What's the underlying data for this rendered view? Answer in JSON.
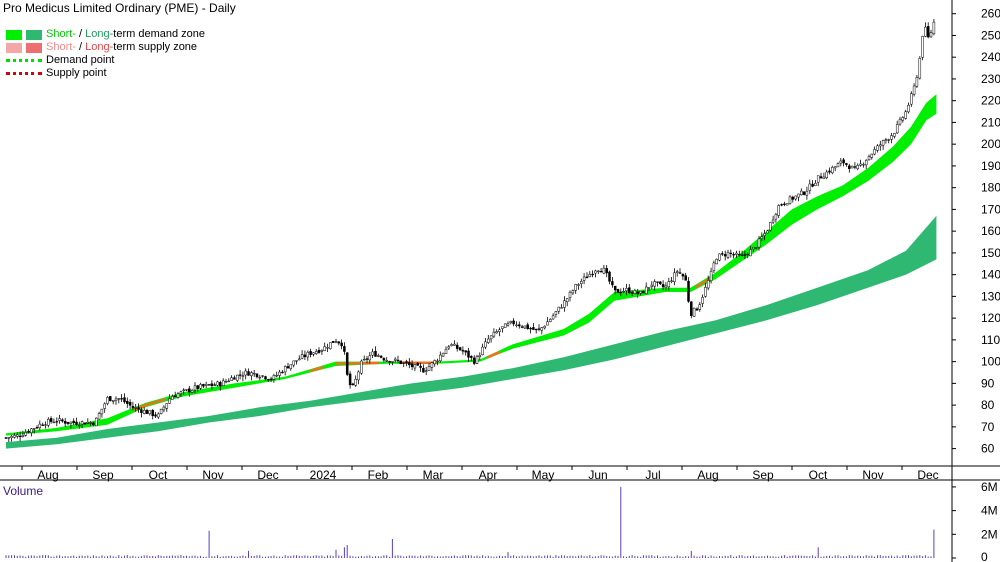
{
  "title": "Pro Medicus Limited Ordinary (PME) - Daily",
  "legend": {
    "demand_zone": {
      "short": "Short-",
      "sep": " / ",
      "long": "Long-",
      "rest": "term demand zone",
      "short_color": "#00ee00",
      "long_color": "#2eb872"
    },
    "supply_zone": {
      "short": "Short-",
      "sep": " / ",
      "long": "Long-",
      "rest": "term supply zone",
      "short_color": "#f4a7a7",
      "long_color": "#ec7070"
    },
    "demand_point": {
      "label": "Demand point",
      "color": "#00dd00"
    },
    "supply_point": {
      "label": "Supply point",
      "color": "#dd0000"
    }
  },
  "volume_title": "Volume",
  "chart_data": [
    {
      "type": "candlestick",
      "title": "Pro Medicus Limited Ordinary (PME) - Daily",
      "x_labels": [
        "Aug",
        "Sep",
        "Oct",
        "Nov",
        "Dec",
        "2024",
        "Feb",
        "Mar",
        "Apr",
        "May",
        "Jun",
        "Jul",
        "Aug",
        "Sep",
        "Oct",
        "Nov",
        "Dec"
      ],
      "y_ticks": [
        60,
        70,
        80,
        90,
        100,
        110,
        120,
        130,
        140,
        150,
        160,
        170,
        180,
        190,
        200,
        210,
        220,
        230,
        240,
        250,
        260
      ],
      "ylim": [
        52,
        264
      ],
      "grid": false,
      "legend_position": "top-left",
      "price_path": [
        [
          0,
          65
        ],
        [
          0.5,
          66
        ],
        [
          1,
          69
        ],
        [
          1.5,
          72
        ],
        [
          2,
          73
        ],
        [
          2.5,
          72
        ],
        [
          3,
          72
        ],
        [
          3.5,
          72
        ],
        [
          4,
          83
        ],
        [
          4.5,
          83
        ],
        [
          5,
          79
        ],
        [
          5.5,
          77
        ],
        [
          6,
          75
        ],
        [
          6.5,
          84
        ],
        [
          7,
          86
        ],
        [
          7.5,
          88
        ],
        [
          8,
          89
        ],
        [
          8.5,
          90
        ],
        [
          9,
          93
        ],
        [
          9.5,
          95
        ],
        [
          10,
          94
        ],
        [
          10.5,
          92
        ],
        [
          11,
          97
        ],
        [
          11.5,
          101
        ],
        [
          12,
          104
        ],
        [
          12.5,
          106
        ],
        [
          13,
          110
        ],
        [
          13.3,
          108
        ],
        [
          13.5,
          90
        ],
        [
          13.7,
          88
        ],
        [
          14,
          99
        ],
        [
          14.5,
          104
        ],
        [
          15,
          101
        ],
        [
          15.5,
          100
        ],
        [
          16,
          98
        ],
        [
          16.5,
          96
        ],
        [
          17,
          101
        ],
        [
          17.5,
          108
        ],
        [
          18,
          105
        ],
        [
          18.5,
          100
        ],
        [
          19,
          110
        ],
        [
          19.5,
          115
        ],
        [
          20,
          118
        ],
        [
          20.5,
          116
        ],
        [
          21,
          114
        ],
        [
          21.5,
          120
        ],
        [
          22,
          127
        ],
        [
          22.5,
          135
        ],
        [
          23,
          140
        ],
        [
          23.3,
          143
        ],
        [
          23.6,
          142
        ],
        [
          24,
          132
        ],
        [
          24.5,
          133
        ],
        [
          25,
          131
        ],
        [
          25.5,
          136
        ],
        [
          26,
          134
        ],
        [
          26.5,
          142
        ],
        [
          26.8,
          138
        ],
        [
          27,
          122
        ],
        [
          27.3,
          125
        ],
        [
          27.8,
          140
        ],
        [
          28,
          148
        ],
        [
          28.5,
          150
        ],
        [
          29,
          148
        ],
        [
          29.5,
          152
        ],
        [
          30,
          160
        ],
        [
          30.5,
          172
        ],
        [
          31,
          175
        ],
        [
          31.5,
          178
        ],
        [
          32,
          184
        ],
        [
          32.5,
          188
        ],
        [
          33,
          192
        ],
        [
          33.5,
          188
        ],
        [
          34,
          194
        ],
        [
          34.5,
          200
        ],
        [
          35,
          205
        ],
        [
          35.5,
          215
        ],
        [
          35.8,
          225
        ],
        [
          36,
          235
        ],
        [
          36.2,
          255
        ],
        [
          36.4,
          248
        ],
        [
          36.6,
          256
        ]
      ],
      "short_term_demand_zone": [
        [
          0,
          66,
          67
        ],
        [
          2,
          68,
          69.5
        ],
        [
          4,
          71,
          74
        ],
        [
          5.5,
          79,
          81
        ],
        [
          7,
          84,
          86
        ],
        [
          9,
          88,
          90
        ],
        [
          11,
          92,
          93
        ],
        [
          13,
          98,
          100
        ],
        [
          15,
          99,
          100
        ],
        [
          17,
          99,
          100
        ],
        [
          18.7,
          100,
          101
        ],
        [
          20,
          106,
          108
        ],
        [
          22,
          112,
          115
        ],
        [
          23,
          118,
          122
        ],
        [
          24,
          128,
          132
        ],
        [
          25,
          130,
          133
        ],
        [
          26,
          132,
          134
        ],
        [
          27,
          132,
          134
        ],
        [
          28,
          138,
          141
        ],
        [
          29,
          146,
          150
        ],
        [
          30,
          154,
          160
        ],
        [
          31,
          163,
          170
        ],
        [
          32,
          170,
          176
        ],
        [
          33,
          176,
          181
        ],
        [
          34,
          183,
          189
        ],
        [
          35,
          192,
          199
        ],
        [
          35.7,
          200,
          208
        ],
        [
          36.3,
          211,
          219
        ],
        [
          36.7,
          214,
          223
        ]
      ],
      "short_term_supply_segments": [
        [
          5,
          6.3
        ],
        [
          12,
          12.5
        ],
        [
          13,
          14.7
        ],
        [
          15.5,
          17
        ],
        [
          19,
          19.5
        ],
        [
          27.2,
          27.8
        ]
      ],
      "long_term_demand_zone": [
        [
          0,
          60,
          63
        ],
        [
          2,
          62,
          65
        ],
        [
          4,
          65,
          69
        ],
        [
          6,
          68,
          72
        ],
        [
          8,
          72,
          75
        ],
        [
          10,
          75,
          79
        ],
        [
          12,
          79,
          82
        ],
        [
          14,
          82,
          86
        ],
        [
          16,
          85,
          90
        ],
        [
          18,
          88,
          93
        ],
        [
          20,
          92,
          97
        ],
        [
          22,
          96,
          102
        ],
        [
          24,
          101,
          108
        ],
        [
          26,
          107,
          114
        ],
        [
          28,
          113,
          119
        ],
        [
          30,
          119,
          126
        ],
        [
          32,
          126,
          134
        ],
        [
          34,
          134,
          142
        ],
        [
          35.5,
          140,
          151
        ],
        [
          36.7,
          147,
          167
        ]
      ]
    },
    {
      "type": "bar",
      "title": "Volume",
      "y_ticks": [
        "0",
        "2M",
        "4M",
        "6M"
      ],
      "ylim": [
        0,
        6.5
      ],
      "spikes": [
        [
          8,
          2.3
        ],
        [
          9.6,
          0.6
        ],
        [
          13,
          0.7
        ],
        [
          13.3,
          0.9
        ],
        [
          13.5,
          1.1
        ],
        [
          15.2,
          1.6
        ],
        [
          19.8,
          0.5
        ],
        [
          24.3,
          6.0
        ],
        [
          27,
          0.6
        ],
        [
          32,
          0.9
        ],
        [
          36.6,
          2.4
        ]
      ]
    }
  ]
}
